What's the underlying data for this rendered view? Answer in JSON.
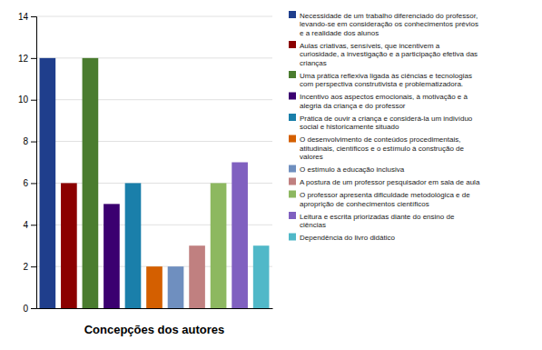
{
  "chart_data": {
    "type": "bar",
    "categories": [
      "Necessidade de um trabalho diferenciado do professor,\nlevando-se em consideração os conhecimentos prévios\ne a realidade dos alunos",
      "Aulas criativas, sensíveis, que incentivem a\ncuriosidade, a investigação e a participação efetiva das\ncrianças",
      "Uma prática reflexiva ligada às ciências e tecnologias\ncom perspectiva construtivista e problematizadora.",
      "Incentivo aos aspectos emocionais, à motivação e à\nalegria da criança e do professor",
      "Prática de ouvir a criança e considerá-la um indivíduo\nsocial e historicamente situado",
      "O desenvolvimento de conteúdos procedimentais,\natitudinais, científicos e o estímulo à construção de\nvalores",
      "O estímulo à educação inclusiva",
      "A postura de um professor pesquisador em sala de aula",
      "O professor apresenta dificuldade metodológica e de\naproprição de conhecimentos científicos",
      "Leitura e escrita priorizadas diante do ensino de\nciências",
      "Dependência do livro didático"
    ],
    "values": [
      12,
      6,
      12,
      5,
      6,
      2,
      2,
      3,
      6,
      7,
      3
    ],
    "colors": [
      "#1f3e8c",
      "#8b0000",
      "#4a7c2f",
      "#3b0070",
      "#1a7faa",
      "#d45f00",
      "#6f8fbf",
      "#c08080",
      "#8db860",
      "#8060c0",
      "#50b8c8"
    ],
    "xlabel": "Concepções dos autores",
    "ylim": [
      0,
      14
    ],
    "yticks": [
      0,
      2,
      4,
      6,
      8,
      10,
      12,
      14
    ],
    "grid": true,
    "legend": "right",
    "tick_labels": "y"
  }
}
